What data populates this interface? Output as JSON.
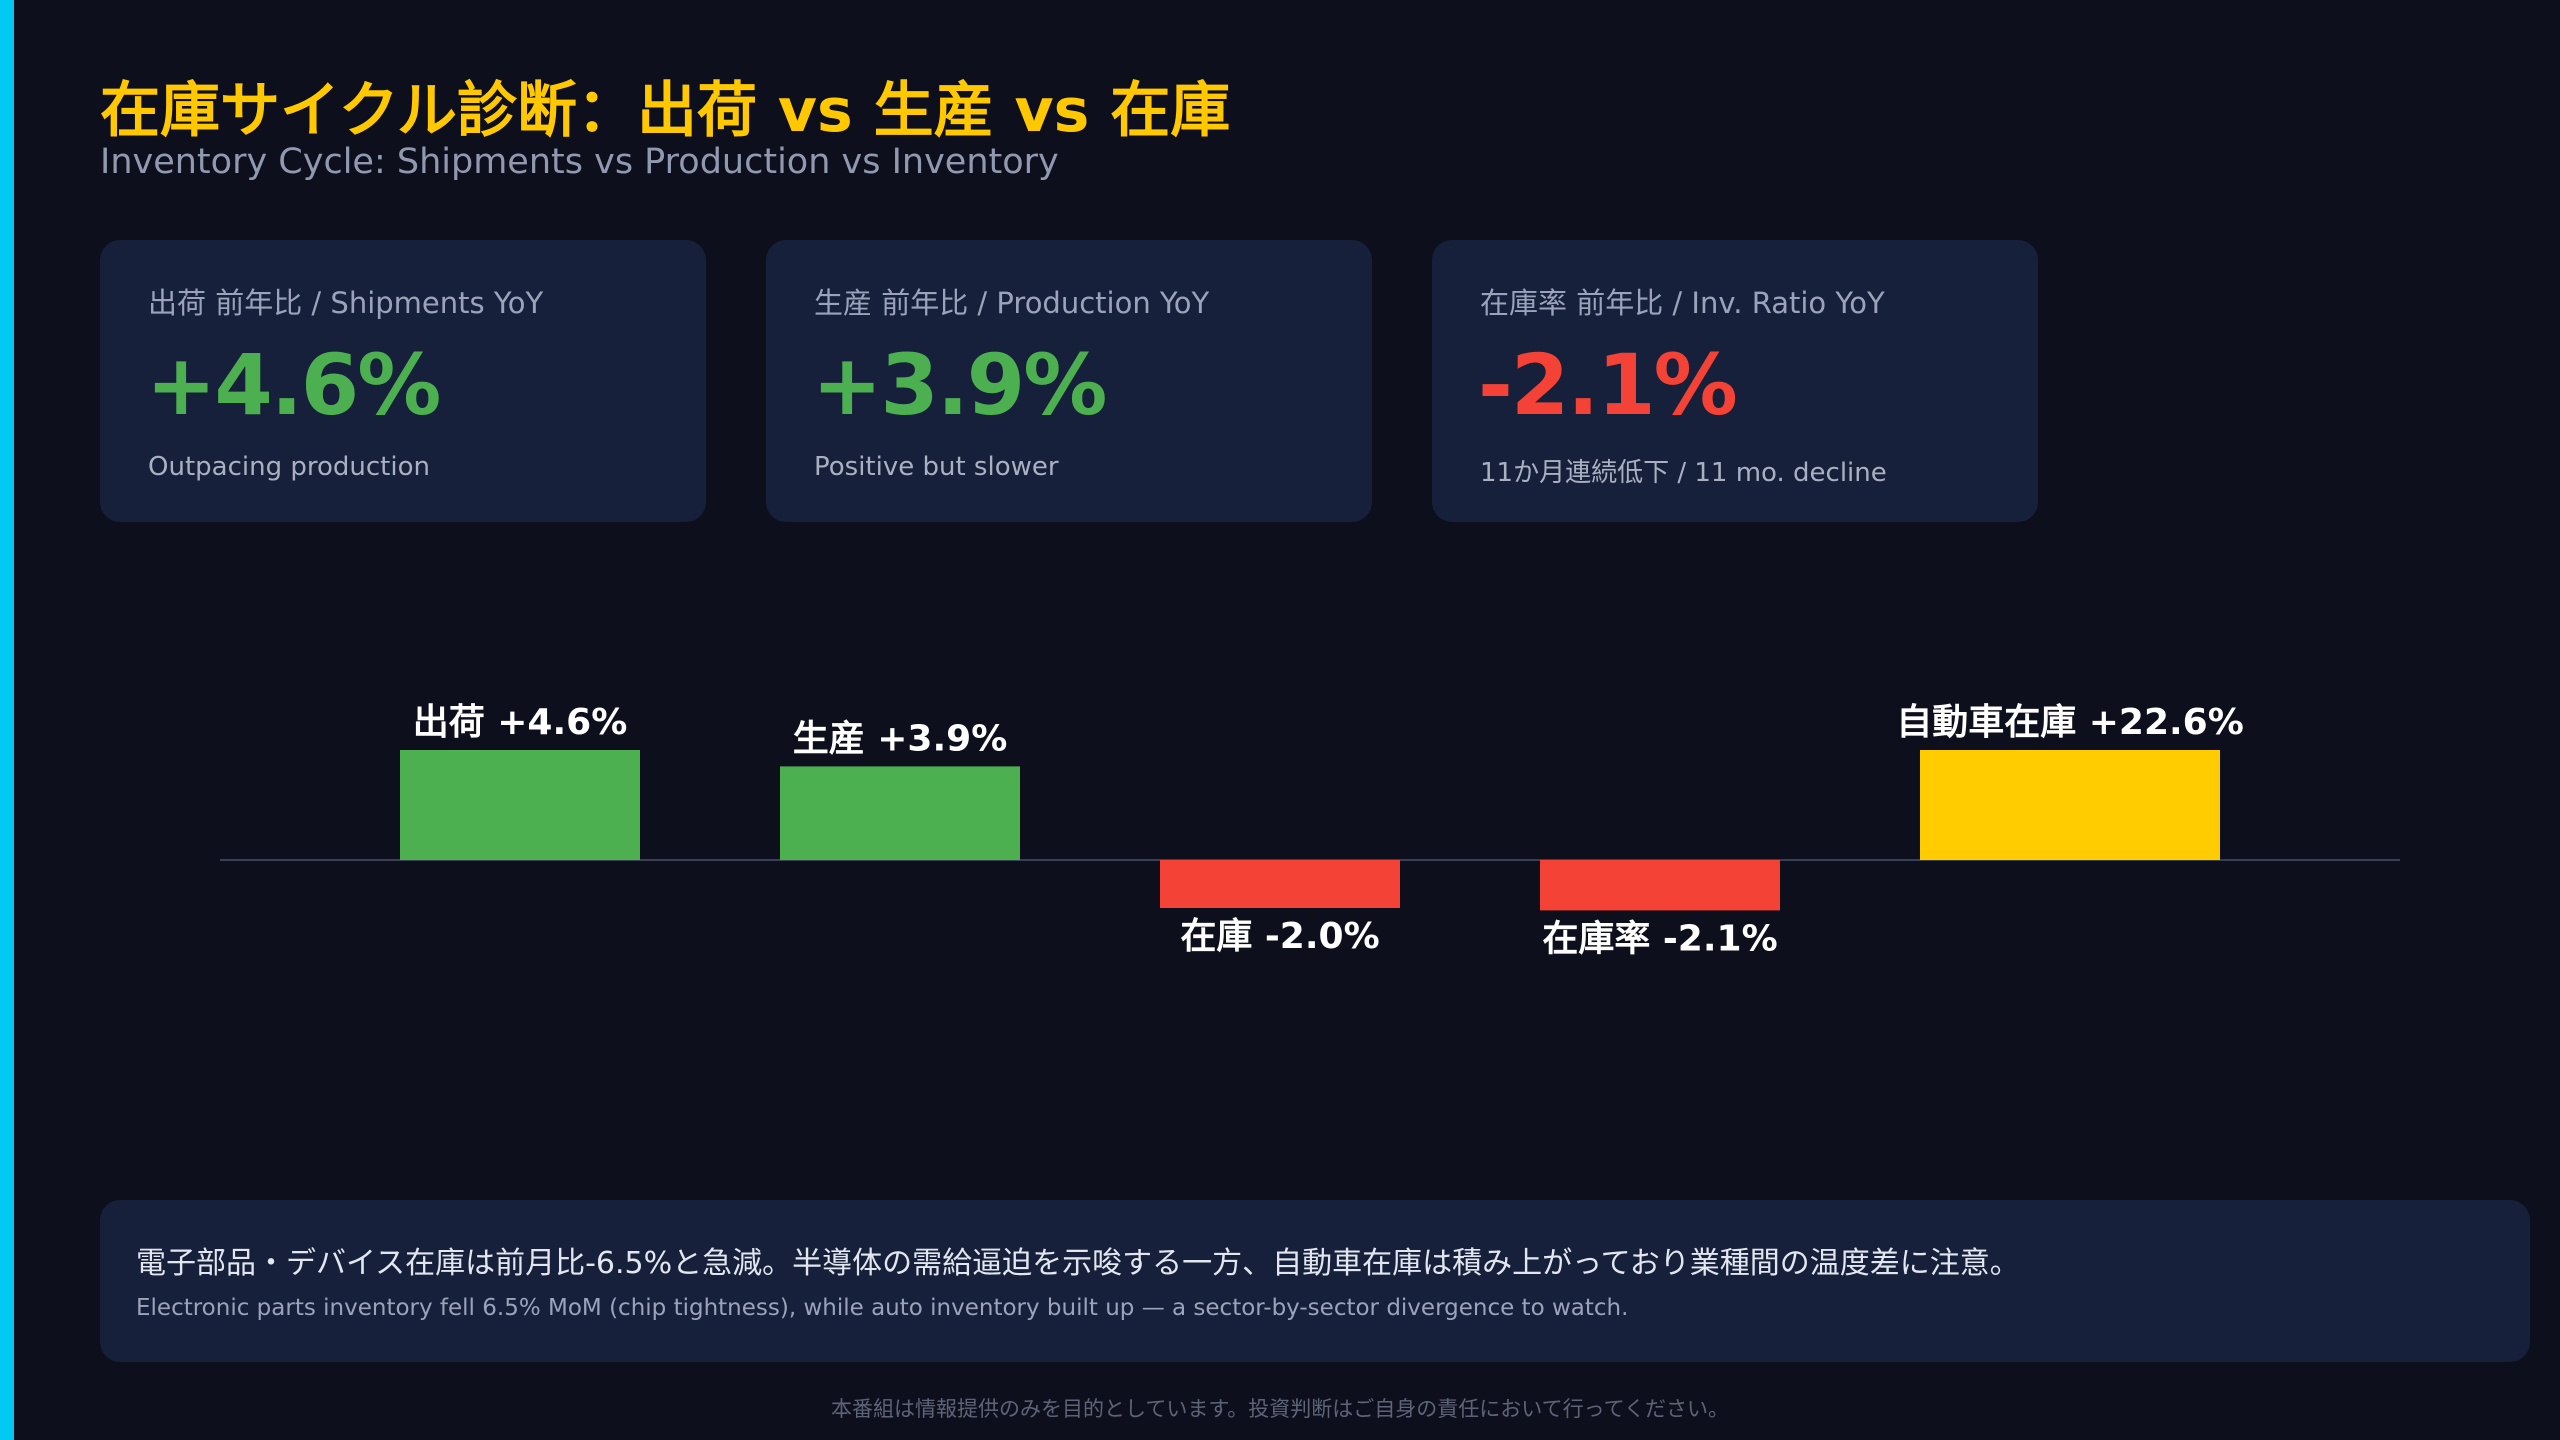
{
  "header": {
    "title": "在庫サイクル診断：出荷 vs 生産 vs 在庫",
    "subtitle": "Inventory Cycle: Shipments vs Production vs Inventory"
  },
  "kpis": [
    {
      "label": "出荷 前年比 / Shipments YoY",
      "value": "+4.6%",
      "note": "Outpacing production",
      "color": "#4caf50"
    },
    {
      "label": "生産 前年比 / Production YoY",
      "value": "+3.9%",
      "note": "Positive but slower",
      "color": "#4caf50"
    },
    {
      "label": "在庫率 前年比 / Inv. Ratio YoY",
      "value": "-2.1%",
      "note": "11か月連続低下 / 11 mo. decline",
      "color": "#f44336"
    }
  ],
  "chart_data": {
    "type": "bar",
    "categories": [
      "出荷",
      "生産",
      "在庫",
      "在庫率",
      "自動車在庫"
    ],
    "values": [
      4.6,
      3.9,
      -2.0,
      -2.1,
      22.6
    ],
    "data_labels": [
      "出荷 +4.6%",
      "生産 +3.9%",
      "在庫 -2.0%",
      "在庫率 -2.1%",
      "自動車在庫 +22.6%"
    ],
    "colors": [
      "#4caf50",
      "#4caf50",
      "#f44336",
      "#f44336",
      "#ffcc00"
    ],
    "title": "",
    "xlabel": "",
    "ylabel": "",
    "grid": false,
    "baseline": 0
  },
  "note": {
    "jp": "電子部品・デバイス在庫は前月比-6.5%と急減。半導体の需給逼迫を示唆する一方、自動車在庫は積み上がっており業種間の温度差に注意。",
    "en": "Electronic parts inventory fell 6.5% MoM (chip tightness), while auto inventory built up — a sector-by-sector divergence to watch."
  },
  "footer": {
    "disclaimer": "本番組は情報提供のみを目的としています。投資判断はご自身の責任において行ってください。"
  }
}
